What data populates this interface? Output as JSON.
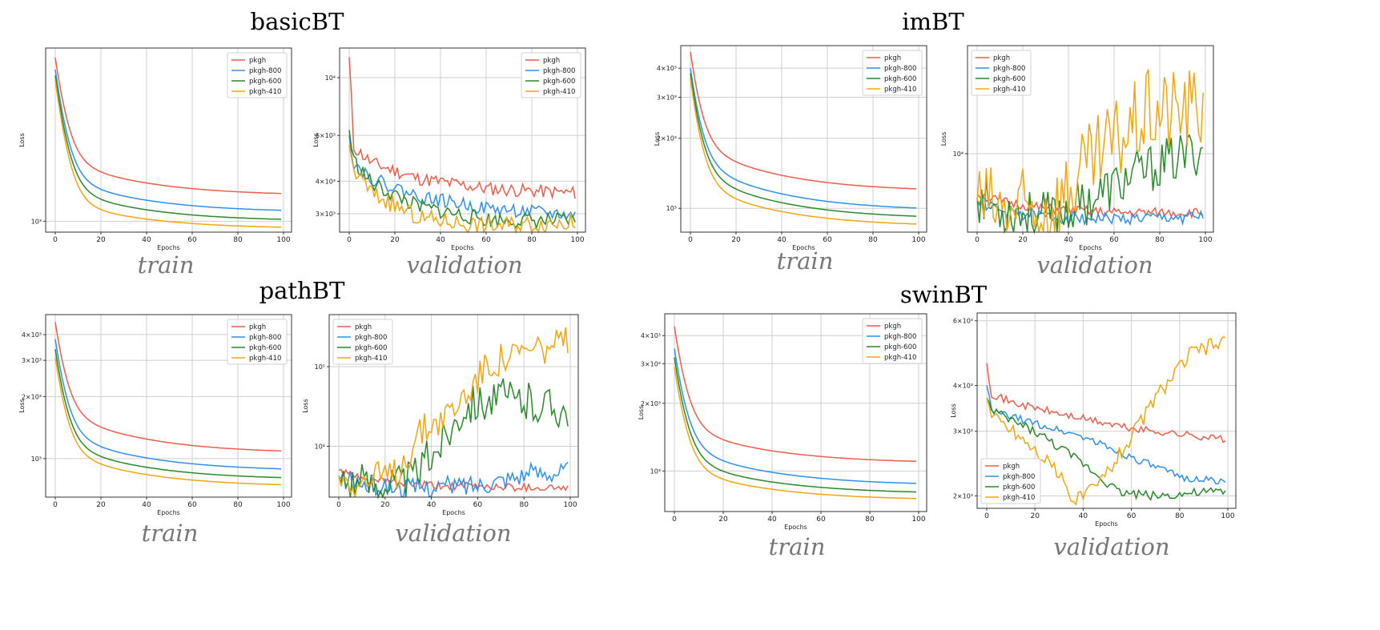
{
  "groups": [
    {
      "title": "basicBT",
      "train_label": "train",
      "validation_label": "validation"
    },
    {
      "title": "imBT",
      "train_label": "train",
      "validation_label": "validation"
    },
    {
      "title": "pathBT",
      "train_label": "train",
      "validation_label": "validation"
    },
    {
      "title": "swinBT",
      "train_label": "train",
      "validation_label": "validation"
    }
  ],
  "colors": {
    "pkgh": "#f25c4a",
    "pkgh-800": "#2e90f0",
    "pkgh-600": "#2a8a2a",
    "pkgh-410": "#f5a50e"
  },
  "chart_data": [
    {
      "id": "basicBT-train",
      "type": "line",
      "xlabel": "Epochs",
      "ylabel": "Loss",
      "xlim": [
        0,
        100
      ],
      "yscale": "log",
      "ylim": [
        880,
        7600
      ],
      "xticks": [
        0,
        20,
        40,
        60,
        80,
        100
      ],
      "yticks": [
        {
          "value": 1000,
          "label": "10³"
        }
      ],
      "legend": "top-right",
      "series": [
        {
          "name": "pkgh",
          "kind": "decay",
          "start": 6800,
          "knee": 2100,
          "end": 1350,
          "tau": 4
        },
        {
          "name": "pkgh-800",
          "kind": "decay",
          "start": 5900,
          "knee": 1700,
          "end": 1110,
          "tau": 4
        },
        {
          "name": "pkgh-600",
          "kind": "decay",
          "start": 5500,
          "knee": 1500,
          "end": 1000,
          "tau": 4
        },
        {
          "name": "pkgh-410",
          "kind": "decay",
          "start": 5200,
          "knee": 1300,
          "end": 915,
          "tau": 4
        }
      ]
    },
    {
      "id": "basicBT-validation",
      "type": "line",
      "xlabel": "Epochs",
      "ylabel": "Loss",
      "xlim": [
        0,
        100
      ],
      "yscale": "log",
      "ylim": [
        2550,
        13000
      ],
      "xticks": [
        0,
        20,
        40,
        60,
        80,
        100
      ],
      "yticks": [
        {
          "value": 10000,
          "label": "10⁴"
        },
        {
          "value": 6000,
          "label": "6×10³"
        },
        {
          "value": 4000,
          "label": "4×10³"
        },
        {
          "value": 3000,
          "label": "3×10³"
        }
      ],
      "legend": "top-right",
      "series": [
        {
          "name": "pkgh",
          "kind": "noisy",
          "start": 12000,
          "points": [
            [
              2,
              5400
            ],
            [
              10,
              4700
            ],
            [
              30,
              4100
            ],
            [
              60,
              3750
            ],
            [
              100,
              3600
            ]
          ],
          "noise": 0.03,
          "seed": 11
        },
        {
          "name": "pkgh-800",
          "kind": "noisy",
          "start": 6000,
          "points": [
            [
              2,
              4700
            ],
            [
              10,
              4100
            ],
            [
              30,
              3500
            ],
            [
              60,
              3150
            ],
            [
              100,
              2950
            ]
          ],
          "noise": 0.03,
          "seed": 22
        },
        {
          "name": "pkgh-600",
          "kind": "noisy",
          "start": 6300,
          "points": [
            [
              2,
              4800
            ],
            [
              10,
              3900
            ],
            [
              30,
              3200
            ],
            [
              60,
              2850
            ],
            [
              100,
              2800
            ]
          ],
          "noise": 0.035,
          "seed": 33
        },
        {
          "name": "pkgh-410",
          "kind": "noisy",
          "start": 5500,
          "points": [
            [
              2,
              4400
            ],
            [
              10,
              3600
            ],
            [
              30,
              2900
            ],
            [
              60,
              2700
            ],
            [
              100,
              2800
            ]
          ],
          "noise": 0.04,
          "seed": 44
        }
      ]
    },
    {
      "id": "imBT-train",
      "type": "line",
      "xlabel": "Epochs",
      "ylabel": "Loss",
      "xlim": [
        0,
        100
      ],
      "yscale": "log",
      "ylim": [
        790,
        5000
      ],
      "xticks": [
        0,
        20,
        40,
        60,
        80,
        100
      ],
      "yticks": [
        {
          "value": 4000,
          "label": "4×10³"
        },
        {
          "value": 3000,
          "label": "3×10³"
        },
        {
          "value": 2000,
          "label": "2×10³"
        },
        {
          "value": 1000,
          "label": "10³"
        }
      ],
      "legend": "top-right",
      "series": [
        {
          "name": "pkgh",
          "kind": "decay",
          "start": 4700,
          "knee": 1900,
          "end": 1180,
          "tau": 4
        },
        {
          "name": "pkgh-800",
          "kind": "decay",
          "start": 4000,
          "knee": 1600,
          "end": 975,
          "tau": 4
        },
        {
          "name": "pkgh-600",
          "kind": "decay",
          "start": 3800,
          "knee": 1450,
          "end": 900,
          "tau": 4
        },
        {
          "name": "pkgh-410",
          "kind": "decay",
          "start": 3600,
          "knee": 1300,
          "end": 835,
          "tau": 4
        }
      ]
    },
    {
      "id": "imBT-validation",
      "type": "line",
      "xlabel": "Epochs",
      "ylabel": "Loss",
      "xlim": [
        0,
        100
      ],
      "yscale": "log",
      "ylim": [
        5300,
        24000
      ],
      "xticks": [
        0,
        20,
        40,
        60,
        80,
        100
      ],
      "yticks": [
        {
          "value": 10000,
          "label": "10⁴"
        }
      ],
      "legend": "top-left",
      "series": [
        {
          "name": "pkgh",
          "kind": "noisy",
          "start": 7200,
          "points": [
            [
              10,
              6800
            ],
            [
              30,
              6400
            ],
            [
              60,
              6200
            ],
            [
              100,
              6200
            ]
          ],
          "noise": 0.02,
          "seed": 51
        },
        {
          "name": "pkgh-800",
          "kind": "noisy",
          "start": 6900,
          "points": [
            [
              10,
              6300
            ],
            [
              30,
              6000
            ],
            [
              60,
              5900
            ],
            [
              100,
              6000
            ]
          ],
          "noise": 0.025,
          "seed": 52
        },
        {
          "name": "pkgh-600",
          "kind": "noisy",
          "start": 7000,
          "points": [
            [
              10,
              6400
            ],
            [
              30,
              6000
            ],
            [
              45,
              6600
            ],
            [
              70,
              8500
            ],
            [
              100,
              10500
            ]
          ],
          "noise": 0.1,
          "seed": 53
        },
        {
          "name": "pkgh-410",
          "kind": "noisy",
          "start": 6800,
          "points": [
            [
              10,
              6300
            ],
            [
              28,
              6200
            ],
            [
              40,
              7500
            ],
            [
              60,
              11000
            ],
            [
              75,
              14000
            ],
            [
              100,
              14500
            ]
          ],
          "noise": 0.18,
          "seed": 54
        }
      ]
    },
    {
      "id": "pathBT-train",
      "type": "line",
      "xlabel": "Epochs",
      "ylabel": "Loss",
      "xlim": [
        0,
        100
      ],
      "yscale": "log",
      "ylim": [
        650,
        5000
      ],
      "xticks": [
        0,
        20,
        40,
        60,
        80,
        100
      ],
      "yticks": [
        {
          "value": 4000,
          "label": "4×10³"
        },
        {
          "value": 3000,
          "label": "3×10³"
        },
        {
          "value": 2000,
          "label": "2×10³"
        },
        {
          "value": 1000,
          "label": "10³"
        }
      ],
      "legend": "top-right",
      "series": [
        {
          "name": "pkgh",
          "kind": "decay",
          "start": 4600,
          "knee": 1700,
          "end": 1060,
          "tau": 4
        },
        {
          "name": "pkgh-800",
          "kind": "decay",
          "start": 3800,
          "knee": 1350,
          "end": 870,
          "tau": 4
        },
        {
          "name": "pkgh-600",
          "kind": "decay",
          "start": 3400,
          "knee": 1200,
          "end": 790,
          "tau": 4
        },
        {
          "name": "pkgh-410",
          "kind": "decay",
          "start": 3100,
          "knee": 1100,
          "end": 730,
          "tau": 4
        }
      ]
    },
    {
      "id": "pathBT-validation",
      "type": "line",
      "xlabel": "Epochs",
      "ylabel": "Loss",
      "xlim": [
        0,
        100
      ],
      "yscale": "log",
      "ylim": [
        2300,
        450000
      ],
      "xticks": [
        0,
        20,
        40,
        60,
        80,
        100
      ],
      "yticks": [
        {
          "value": 100000,
          "label": "10⁵"
        },
        {
          "value": 10000,
          "label": "10⁴"
        }
      ],
      "legend": "top-left",
      "series": [
        {
          "name": "pkgh",
          "kind": "noisy",
          "start": 5000,
          "points": [
            [
              10,
              3800
            ],
            [
              40,
              3200
            ],
            [
              100,
              3000
            ]
          ],
          "noise": 0.06,
          "seed": 61
        },
        {
          "name": "pkgh-800",
          "kind": "noisy",
          "start": 4000,
          "points": [
            [
              10,
              3300
            ],
            [
              30,
              3000
            ],
            [
              60,
              3300
            ],
            [
              80,
              4500
            ],
            [
              100,
              5000
            ]
          ],
          "noise": 0.15,
          "seed": 62
        },
        {
          "name": "pkgh-600",
          "kind": "noisy",
          "start": 4200,
          "points": [
            [
              10,
              3400
            ],
            [
              30,
              3500
            ],
            [
              45,
              12000
            ],
            [
              55,
              35000
            ],
            [
              70,
              40000
            ],
            [
              100,
              30000
            ]
          ],
          "noise": 0.3,
          "seed": 63
        },
        {
          "name": "pkgh-410",
          "kind": "noisy",
          "start": 4300,
          "points": [
            [
              10,
              3500
            ],
            [
              25,
              4500
            ],
            [
              35,
              15000
            ],
            [
              50,
              30000
            ],
            [
              65,
              110000
            ],
            [
              80,
              150000
            ],
            [
              100,
              200000
            ]
          ],
          "noise": 0.25,
          "seed": 64
        }
      ]
    },
    {
      "id": "swinBT-train",
      "type": "line",
      "xlabel": "Epochs",
      "ylabel": "Loss",
      "xlim": [
        0,
        100
      ],
      "yscale": "log",
      "ylim": [
        660,
        5000
      ],
      "xticks": [
        0,
        20,
        40,
        60,
        80,
        100
      ],
      "yticks": [
        {
          "value": 4000,
          "label": "4×10³"
        },
        {
          "value": 3000,
          "label": "3×10³"
        },
        {
          "value": 2000,
          "label": "2×10³"
        },
        {
          "value": 1000,
          "label": "10³"
        }
      ],
      "legend": "top-right",
      "series": [
        {
          "name": "pkgh",
          "kind": "decay",
          "start": 4400,
          "knee": 1600,
          "end": 1080,
          "tau": 4
        },
        {
          "name": "pkgh-800",
          "kind": "decay",
          "start": 3500,
          "knee": 1300,
          "end": 860,
          "tau": 4
        },
        {
          "name": "pkgh-600",
          "kind": "decay",
          "start": 3200,
          "knee": 1150,
          "end": 790,
          "tau": 4
        },
        {
          "name": "pkgh-410",
          "kind": "decay",
          "start": 2900,
          "knee": 1050,
          "end": 740,
          "tau": 4
        }
      ]
    },
    {
      "id": "swinBT-validation",
      "type": "line",
      "xlabel": "Epochs",
      "ylabel": "Loss",
      "xlim": [
        0,
        100
      ],
      "yscale": "log",
      "ylim": [
        1850,
        6300
      ],
      "xticks": [
        0,
        20,
        40,
        60,
        80,
        100
      ],
      "yticks": [
        {
          "value": 6000,
          "label": "6×10³"
        },
        {
          "value": 4000,
          "label": "4×10³"
        },
        {
          "value": 3000,
          "label": "3×10³"
        },
        {
          "value": 2000,
          "label": "2×10³"
        }
      ],
      "legend": "bottom-left",
      "series": [
        {
          "name": "pkgh",
          "kind": "noisy",
          "start": 4600,
          "points": [
            [
              2,
              3800
            ],
            [
              10,
              3600
            ],
            [
              30,
              3350
            ],
            [
              60,
              3050
            ],
            [
              100,
              2850
            ]
          ],
          "noise": 0.012,
          "seed": 71
        },
        {
          "name": "pkgh-800",
          "kind": "noisy",
          "start": 4000,
          "points": [
            [
              2,
              3400
            ],
            [
              20,
              3150
            ],
            [
              40,
              2900
            ],
            [
              60,
              2550
            ],
            [
              80,
              2250
            ],
            [
              100,
              2180
            ]
          ],
          "noise": 0.012,
          "seed": 72
        },
        {
          "name": "pkgh-600",
          "kind": "noisy",
          "start": 3700,
          "points": [
            [
              2,
              3400
            ],
            [
              20,
              3000
            ],
            [
              40,
              2450
            ],
            [
              55,
              2050
            ],
            [
              70,
              2000
            ],
            [
              100,
              2060
            ]
          ],
          "noise": 0.015,
          "seed": 73
        },
        {
          "name": "pkgh-410",
          "kind": "noisy",
          "start": 3700,
          "points": [
            [
              2,
              3300
            ],
            [
              10,
              3050
            ],
            [
              25,
              2500
            ],
            [
              37,
              1950
            ],
            [
              45,
              2100
            ],
            [
              60,
              2900
            ],
            [
              70,
              3700
            ],
            [
              85,
              4900
            ],
            [
              100,
              5300
            ]
          ],
          "noise": 0.025,
          "seed": 74
        }
      ]
    }
  ]
}
